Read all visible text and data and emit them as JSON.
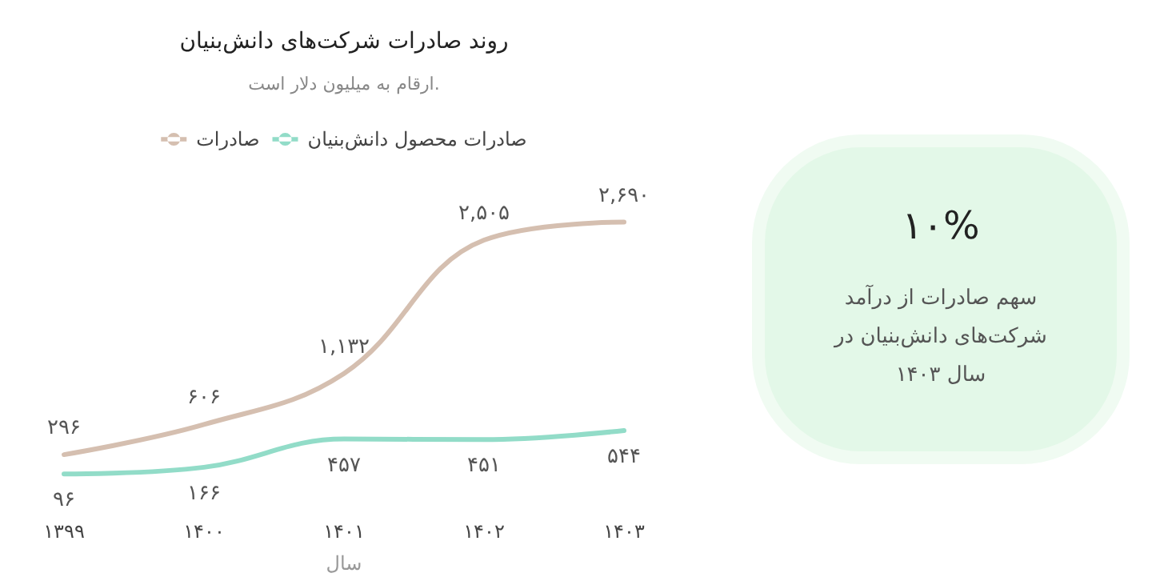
{
  "chart_data": [
    {
      "type": "line",
      "title": "روند صادرات شرکت‌های دانش‌بنیان",
      "subtitle": "ارقام به میلیون دلار است.",
      "xlabel": "سال",
      "categories": [
        "۱۳۹۹",
        "۱۴۰۰",
        "۱۴۰۱",
        "۱۴۰۲",
        "۱۴۰۳"
      ],
      "legend": "top",
      "marker": "none",
      "grid": false,
      "series": [
        {
          "name": "صادرات",
          "color": "#d5bfb0",
          "values": [
            296,
            606,
            1132,
            2505,
            2690
          ],
          "value_labels": [
            "۲۹۶",
            "۶۰۶",
            "۱,۱۳۲",
            "۲,۵۰۵",
            "۲,۶۹۰"
          ]
        },
        {
          "name": "صادرات محصول دانش‌بنیان",
          "color": "#92dcc8",
          "values": [
            96,
            166,
            457,
            451,
            544
          ],
          "value_labels": [
            "۹۶",
            "۱۶۶",
            "۴۵۷",
            "۴۵۱",
            "۵۴۴"
          ]
        }
      ]
    },
    {
      "type": "other",
      "title": "۱۰%",
      "annotations": [
        "سهم صادرات از درآمد شرکت‌های دانش‌بنیان در سال ۱۴۰۳"
      ]
    }
  ]
}
